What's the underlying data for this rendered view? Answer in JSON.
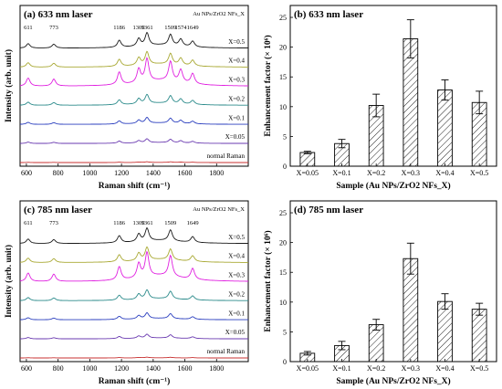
{
  "chart_data": [
    {
      "id": "a",
      "type": "line",
      "title": "(a) 633 nm laser",
      "legend_title": "Au NPs/ZrO2 NFs_X",
      "xlabel": "Raman shift (cm⁻¹)",
      "ylabel": "Intensity (arb. unit)",
      "xlim": [
        560,
        2000
      ],
      "xticks": [
        600,
        800,
        1000,
        1200,
        1400,
        1600,
        1800
      ],
      "peaks": [
        611,
        773,
        1186,
        1309,
        1361,
        1509,
        1574,
        1649
      ],
      "series": [
        {
          "name": "X=0.5",
          "color": "#1a1a1a",
          "scale": 1.0
        },
        {
          "name": "X=0.4",
          "color": "#a8a832",
          "scale": 1.0
        },
        {
          "name": "X=0.3",
          "color": "#e020e0",
          "scale": 1.8
        },
        {
          "name": "X=0.2",
          "color": "#2a8a8a",
          "scale": 0.7
        },
        {
          "name": "X=0.1",
          "color": "#2b3fbf",
          "scale": 0.45
        },
        {
          "name": "X=0.05",
          "color": "#6a3ab0",
          "scale": 0.3
        },
        {
          "name": "normal Raman",
          "color": "#c83030",
          "scale": 0.05
        }
      ]
    },
    {
      "id": "b",
      "type": "bar",
      "title": "(b) 633 nm laser",
      "xlabel": "Sample (Au NPs/ZrO2 NFs_X)",
      "ylabel": "Enhancement factor (× 10⁶)",
      "categories": [
        "X=0.05",
        "X=0.1",
        "X=0.2",
        "X=0.3",
        "X=0.4",
        "X=0.5"
      ],
      "values": [
        2.3,
        3.8,
        10.2,
        21.4,
        12.8,
        10.7
      ],
      "errors": [
        0.2,
        0.7,
        1.9,
        3.2,
        1.7,
        1.9
      ],
      "ylim": [
        0,
        27
      ],
      "yticks": [
        0,
        5,
        10,
        15,
        20,
        25
      ]
    },
    {
      "id": "c",
      "type": "line",
      "title": "(c) 785 nm laser",
      "legend_title": "Au NPs/ZrO2 NFs_X",
      "xlabel": "Raman shift (cm⁻¹)",
      "ylabel": "Intensity (arb. unit)",
      "xlim": [
        560,
        2000
      ],
      "xticks": [
        600,
        800,
        1000,
        1200,
        1400,
        1600,
        1800
      ],
      "peaks": [
        611,
        773,
        1186,
        1309,
        1361,
        1509,
        1649
      ],
      "series": [
        {
          "name": "X=0.5",
          "color": "#1a1a1a",
          "scale": 1.0
        },
        {
          "name": "X=0.4",
          "color": "#a8a832",
          "scale": 1.0
        },
        {
          "name": "X=0.3",
          "color": "#e020e0",
          "scale": 1.9
        },
        {
          "name": "X=0.2",
          "color": "#2a8a8a",
          "scale": 0.7
        },
        {
          "name": "X=0.1",
          "color": "#2b3fbf",
          "scale": 0.45
        },
        {
          "name": "X=0.05",
          "color": "#6a3ab0",
          "scale": 0.3
        },
        {
          "name": "normal Raman",
          "color": "#c83030",
          "scale": 0.05
        }
      ]
    },
    {
      "id": "d",
      "type": "bar",
      "title": "(d) 785 nm laser",
      "xlabel": "Sample (Au NPs/ZrO2 NFs_X)",
      "ylabel": "Enhancement factor (× 10⁶)",
      "categories": [
        "X=0.05",
        "X=0.1",
        "X=0.2",
        "X=0.3",
        "X=0.4",
        "X=0.5"
      ],
      "values": [
        1.4,
        2.7,
        6.2,
        17.3,
        10.1,
        8.8
      ],
      "errors": [
        0.3,
        0.7,
        0.9,
        2.6,
        1.3,
        1.0
      ],
      "ylim": [
        0,
        27
      ],
      "yticks": [
        0,
        5,
        10,
        15,
        20,
        25
      ]
    }
  ]
}
